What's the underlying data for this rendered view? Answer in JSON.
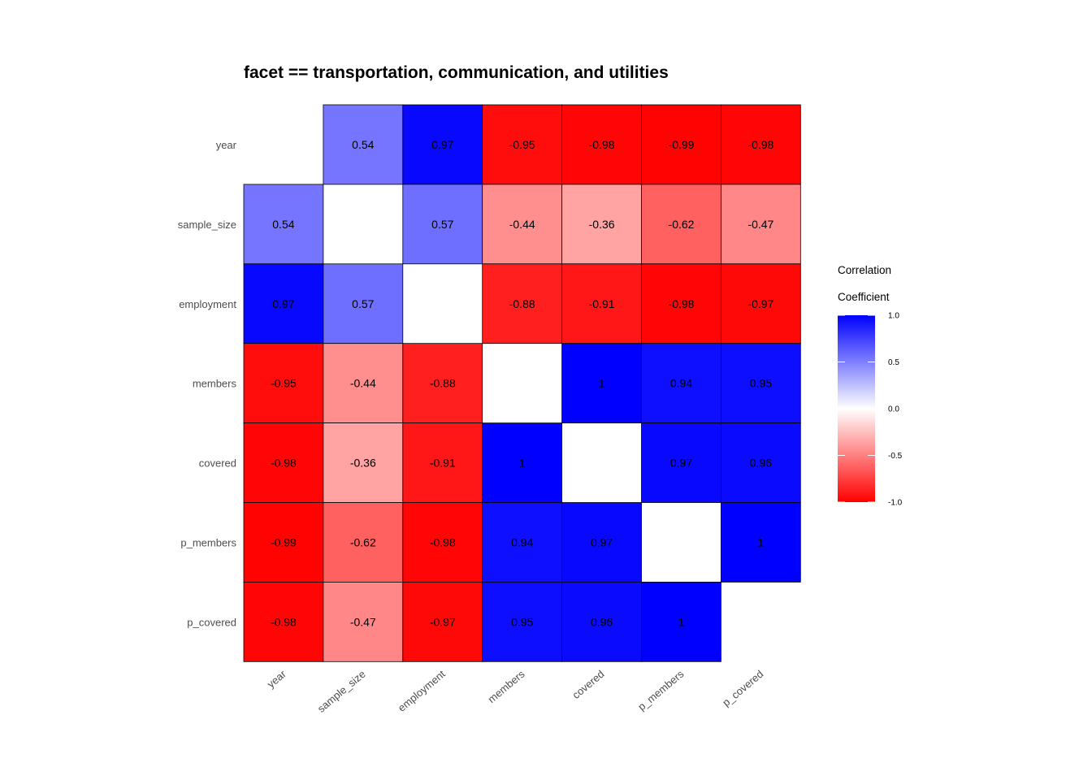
{
  "chart_data": {
    "type": "heatmap",
    "title": "facet == transportation, communication, and utilities",
    "variables": [
      "year",
      "sample_size",
      "employment",
      "members",
      "covered",
      "p_members",
      "p_covered"
    ],
    "matrix": [
      [
        null,
        0.54,
        0.97,
        -0.95,
        -0.98,
        -0.99,
        -0.98
      ],
      [
        0.54,
        null,
        0.57,
        -0.44,
        -0.36,
        -0.62,
        -0.47
      ],
      [
        0.97,
        0.57,
        null,
        -0.88,
        -0.91,
        -0.98,
        -0.97
      ],
      [
        -0.95,
        -0.44,
        -0.88,
        null,
        1,
        0.94,
        0.95
      ],
      [
        -0.98,
        -0.36,
        -0.91,
        1,
        null,
        0.97,
        0.96
      ],
      [
        -0.99,
        -0.62,
        -0.98,
        0.94,
        0.97,
        null,
        1
      ],
      [
        -0.98,
        -0.47,
        -0.97,
        0.95,
        0.96,
        1,
        null
      ]
    ],
    "color_scale": {
      "low": "#ff0000",
      "mid": "#ffffff",
      "high": "#0000ff",
      "limits": [
        -1,
        1
      ]
    },
    "legend": {
      "title_line1": "Correlation",
      "title_line2": "Coefficient",
      "ticks": [
        "1.0",
        "0.5",
        "0.0",
        "-0.5",
        "-1.0"
      ],
      "placement": "right"
    },
    "grid": false
  }
}
